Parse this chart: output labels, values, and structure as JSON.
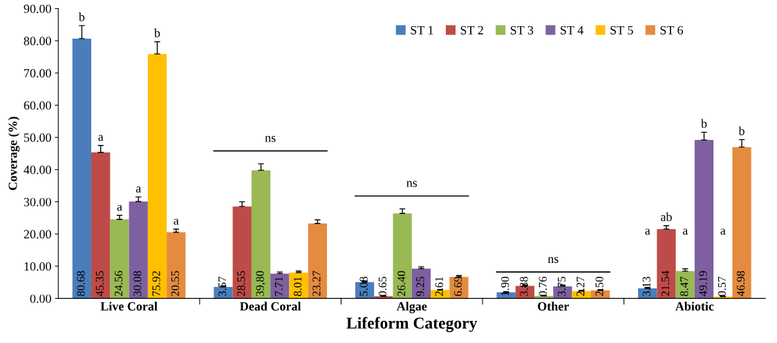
{
  "chart_data": {
    "type": "bar",
    "xlabel": "Lifeform Category",
    "ylabel": "Coverage (%)",
    "categories": [
      "Live Coral",
      "Dead Coral",
      "Algae",
      "Other",
      "Abiotic"
    ],
    "ylim": [
      0,
      90
    ],
    "yticks": [
      {
        "value": 0,
        "label": "0.00"
      },
      {
        "value": 10,
        "label": "10.00"
      },
      {
        "value": 20,
        "label": "20.00"
      },
      {
        "value": 30,
        "label": "30.00"
      },
      {
        "value": 40,
        "label": "40.00"
      },
      {
        "value": 50,
        "label": "50.00"
      },
      {
        "value": 60,
        "label": "60.00"
      },
      {
        "value": 70,
        "label": "70.00"
      },
      {
        "value": 80,
        "label": "80.00"
      },
      {
        "value": 90,
        "label": "90.00"
      }
    ],
    "legend": "top right",
    "grid": false,
    "series": [
      {
        "name": "ST 1",
        "color": "#4a7ebb",
        "values": [
          80.68,
          3.57,
          5.08,
          1.9,
          3.13
        ],
        "value_labels": [
          "80.68",
          "3.57",
          "5.08",
          "1.90",
          "3.13"
        ],
        "errors": [
          [
            80.68,
            84.7
          ],
          [
            3.57,
            3.9
          ],
          [
            5.08,
            5.4
          ],
          [
            1.9,
            2.1
          ],
          [
            3.13,
            3.4
          ]
        ]
      },
      {
        "name": "ST 2",
        "color": "#be4b48",
        "values": [
          45.35,
          28.55,
          0.65,
          3.88,
          21.54
        ],
        "value_labels": [
          "45.35",
          "28.55",
          "0.65",
          "3.88",
          "21.54"
        ],
        "errors": [
          [
            45.35,
            47.5
          ],
          [
            28.55,
            30.0
          ],
          [
            0.65,
            0.8
          ],
          [
            3.88,
            4.2
          ],
          [
            21.54,
            22.6
          ]
        ]
      },
      {
        "name": "ST 3",
        "color": "#98b954",
        "values": [
          24.56,
          39.8,
          26.4,
          0.76,
          8.47
        ],
        "value_labels": [
          "24.56",
          "39,80",
          "26.40",
          "0.76",
          "8.47"
        ],
        "errors": [
          [
            24.56,
            25.8
          ],
          [
            39.8,
            41.8
          ],
          [
            26.4,
            27.8
          ],
          [
            0.76,
            0.9
          ],
          [
            8.47,
            9.2
          ]
        ]
      },
      {
        "name": "ST 4",
        "color": "#7d60a0",
        "values": [
          30.08,
          7.71,
          9.25,
          3.75,
          49.19
        ],
        "value_labels": [
          "30.08",
          "7.71",
          "9.25",
          "3.75",
          "49.19"
        ],
        "errors": [
          [
            30.08,
            31.5
          ],
          [
            7.71,
            8.2
          ],
          [
            9.25,
            9.8
          ],
          [
            3.75,
            4.1
          ],
          [
            49.19,
            51.6
          ]
        ]
      },
      {
        "name": "ST 5",
        "color": "#ffc000",
        "values": [
          75.92,
          8.01,
          2.61,
          2.27,
          0.57
        ],
        "value_labels": [
          "75.92",
          "8.01",
          "2.61",
          "2.27",
          "0.57"
        ],
        "errors": [
          [
            75.92,
            79.7
          ],
          [
            8.01,
            8.5
          ],
          [
            2.61,
            2.8
          ],
          [
            2.27,
            2.5
          ],
          [
            0.57,
            0.7
          ]
        ]
      },
      {
        "name": "ST 6",
        "color": "#e48b3f",
        "values": [
          20.55,
          23.27,
          6.69,
          2.5,
          46.98
        ],
        "value_labels": [
          "20.55",
          "23.27",
          "6.69",
          "2.50",
          "46.98"
        ],
        "errors": [
          [
            20.55,
            21.5
          ],
          [
            23.27,
            24.4
          ],
          [
            6.69,
            7.1
          ],
          [
            2.5,
            2.7
          ],
          [
            46.98,
            49.3
          ]
        ]
      }
    ],
    "annotations": [
      "b",
      "a",
      "a",
      "a",
      "b",
      "a",
      "ns",
      "ns",
      "ns",
      "a",
      "ab",
      "a",
      "b",
      "a",
      "b"
    ]
  }
}
